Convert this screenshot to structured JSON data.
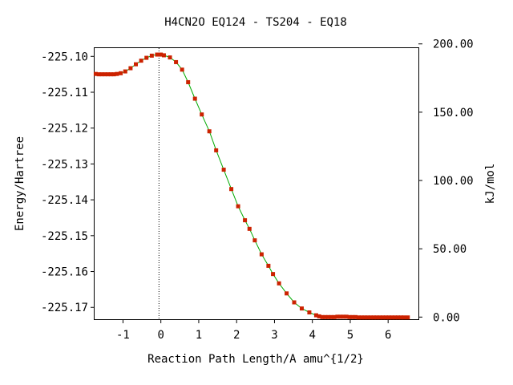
{
  "chart_data": {
    "type": "line",
    "title": "H4CN2O   EQ124 - TS204 - EQ18",
    "xlabel": "Reaction Path Length/A amu^{1/2}",
    "ylabel": "Energy/Hartree",
    "y2label": "kJ/mol",
    "xlim": [
      -1.75,
      6.8
    ],
    "ylim": [
      -225.1733,
      -225.0977
    ],
    "x_ticks": [
      -1,
      0,
      1,
      2,
      3,
      4,
      5,
      6
    ],
    "x_tick_labels": [
      "-1",
      "0",
      "1",
      "2",
      "3",
      "4",
      "5",
      "6"
    ],
    "y_ticks": [
      -225.1,
      -225.11,
      -225.12,
      -225.13,
      -225.14,
      -225.15,
      -225.16,
      -225.17
    ],
    "y_tick_labels": [
      "-225.10",
      "-225.11",
      "-225.12",
      "-225.13",
      "-225.14",
      "-225.15",
      "-225.16",
      "-225.17"
    ],
    "y2_ticks": [
      0,
      50,
      100,
      150,
      200
    ],
    "y2_tick_labels": [
      "0.00",
      "50.00",
      "100.00",
      "150.00",
      "200.00"
    ],
    "y2_zero_energy": -225.1727,
    "hartree_to_kjmol": 2625.5,
    "ts_marker_x": -0.05,
    "grid": false,
    "series": [
      {
        "color": "#00aa00",
        "marker_color": "#cc2200",
        "x": [
          -1.72,
          -1.64,
          -1.56,
          -1.48,
          -1.4,
          -1.32,
          -1.24,
          -1.16,
          -1.06,
          -0.94,
          -0.8,
          -0.66,
          -0.52,
          -0.38,
          -0.24,
          -0.1,
          0.0,
          0.08,
          0.24,
          0.4,
          0.56,
          0.72,
          0.9,
          1.08,
          1.28,
          1.46,
          1.66,
          1.86,
          2.04,
          2.22,
          2.34,
          2.48,
          2.66,
          2.84,
          2.96,
          3.12,
          3.32,
          3.52,
          3.72,
          3.92,
          4.1,
          4.18,
          4.26,
          4.34,
          4.42,
          4.5,
          4.58,
          4.66,
          4.74,
          4.82,
          4.9,
          4.98,
          5.06,
          5.14,
          5.22,
          5.3,
          5.38,
          5.46,
          5.54,
          5.62,
          5.7,
          5.78,
          5.86,
          5.94,
          6.02,
          6.1,
          6.18,
          6.26,
          6.34,
          6.42,
          6.52
        ],
        "y": [
          -225.1049,
          -225.105,
          -225.105,
          -225.105,
          -225.105,
          -225.105,
          -225.105,
          -225.1049,
          -225.1047,
          -225.1042,
          -225.1033,
          -225.1022,
          -225.1012,
          -225.1004,
          -225.0998,
          -225.0995,
          -225.0995,
          -225.0997,
          -225.1003,
          -225.1016,
          -225.1037,
          -225.1072,
          -225.1118,
          -225.1162,
          -225.1209,
          -225.1262,
          -225.1316,
          -225.137,
          -225.1418,
          -225.1457,
          -225.1481,
          -225.1513,
          -225.1552,
          -225.1584,
          -225.1607,
          -225.1633,
          -225.1661,
          -225.1686,
          -225.1703,
          -225.1714,
          -225.1722,
          -225.1725,
          -225.1727,
          -225.1727,
          -225.1727,
          -225.1727,
          -225.1727,
          -225.1726,
          -225.1726,
          -225.1726,
          -225.1726,
          -225.1727,
          -225.1727,
          -225.1727,
          -225.1728,
          -225.1728,
          -225.1728,
          -225.1728,
          -225.1728,
          -225.1728,
          -225.1728,
          -225.1728,
          -225.1728,
          -225.1728,
          -225.1728,
          -225.1728,
          -225.1728,
          -225.1728,
          -225.1728,
          -225.1728,
          -225.1728
        ]
      }
    ]
  }
}
